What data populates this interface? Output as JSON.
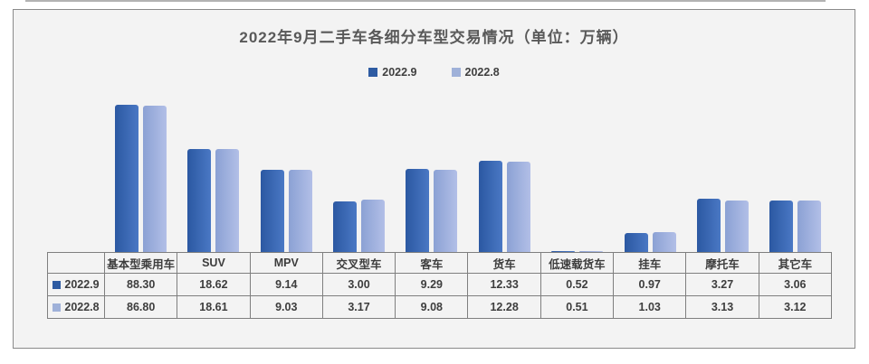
{
  "header": {
    "title": "2022年9月二手车各细分车型交易情况（单位：万辆）"
  },
  "chart_data": {
    "type": "bar",
    "title": "2022年9月二手车各细分车型交易情况",
    "unit": "万辆",
    "legend_position": "top-center",
    "y_axis_visible": false,
    "y_scale": "log",
    "grid": false,
    "value_format": "2dp",
    "categories": [
      "基本型乘用车",
      "SUV",
      "MPV",
      "交叉型车",
      "客车",
      "货车",
      "低速载货车",
      "挂车",
      "摩托车",
      "其它车"
    ],
    "series": [
      {
        "name": "2022.9",
        "legend_color": "#2e5ba2",
        "values": [
          88.3,
          18.62,
          9.14,
          3.0,
          9.29,
          12.33,
          0.52,
          0.97,
          3.27,
          3.06
        ]
      },
      {
        "name": "2022.8",
        "legend_color": "#9fb1d9",
        "values": [
          86.8,
          18.61,
          9.03,
          3.17,
          9.08,
          12.28,
          0.51,
          1.03,
          3.13,
          3.12
        ]
      }
    ],
    "data_table_shown": true
  },
  "colors": {
    "card_background": "#f3f3f3",
    "card_border": "#8a8a8a",
    "table_border": "#7f7f7f",
    "title_text": "#595959",
    "table_text": "#3d3d3d",
    "series1_bar_gradient": [
      "#2b58a2",
      "#4a78c4"
    ],
    "series2_bar_gradient": [
      "#8ba1d4",
      "#b2bfe7"
    ]
  }
}
